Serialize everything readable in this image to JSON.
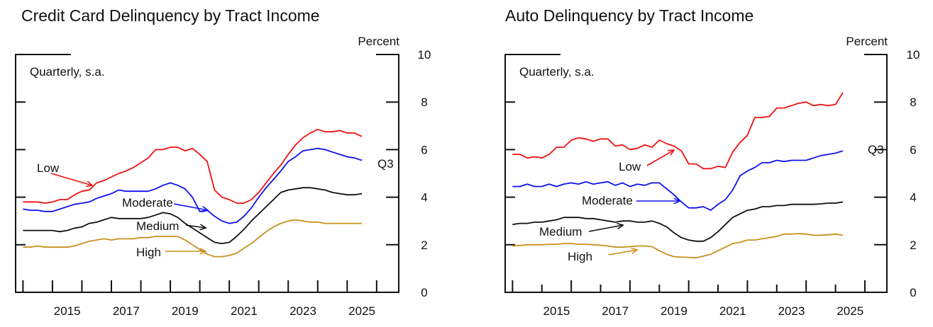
{
  "chart_data": [
    {
      "type": "line",
      "title": "Credit Card Delinquency by Tract Income",
      "ylabel": "Percent",
      "note": "Quarterly, s.a.",
      "end_label": "Q3",
      "ylim": [
        0,
        10
      ],
      "yticks": [
        0,
        2,
        4,
        6,
        8,
        10
      ],
      "xticks": [
        "2015",
        "2017",
        "2019",
        "2021",
        "2023",
        "2025"
      ],
      "xlim": [
        2013.75,
        2026.75
      ],
      "x_start": 2014.0,
      "x_step": 0.25,
      "series": [
        {
          "name": "Low",
          "color": "#ee1111",
          "values": [
            3.8,
            3.8,
            3.8,
            3.75,
            3.8,
            3.9,
            3.9,
            4.1,
            4.25,
            4.3,
            4.6,
            4.7,
            4.85,
            5.0,
            5.1,
            5.25,
            5.45,
            5.65,
            6.0,
            6.0,
            6.1,
            6.1,
            5.95,
            6.05,
            5.8,
            5.5,
            4.3,
            4.0,
            3.9,
            3.75,
            3.75,
            3.9,
            4.2,
            4.6,
            5.0,
            5.35,
            5.8,
            6.2,
            6.5,
            6.7,
            6.85,
            6.75,
            6.75,
            6.8,
            6.7,
            6.7,
            6.55
          ]
        },
        {
          "name": "Moderate",
          "color": "#1111ee",
          "values": [
            3.5,
            3.45,
            3.45,
            3.4,
            3.4,
            3.5,
            3.6,
            3.7,
            3.75,
            3.8,
            3.95,
            4.05,
            4.15,
            4.3,
            4.25,
            4.25,
            4.25,
            4.25,
            4.35,
            4.5,
            4.6,
            4.5,
            4.35,
            4.0,
            3.4,
            3.45,
            3.2,
            3.0,
            2.9,
            2.95,
            3.2,
            3.55,
            4.0,
            4.4,
            4.75,
            5.1,
            5.5,
            5.7,
            5.95,
            6.0,
            6.05,
            6.0,
            5.9,
            5.8,
            5.7,
            5.65,
            5.55
          ]
        },
        {
          "name": "Medium",
          "color": "#111111",
          "values": [
            2.6,
            2.6,
            2.6,
            2.6,
            2.6,
            2.55,
            2.6,
            2.7,
            2.75,
            2.9,
            2.95,
            3.05,
            3.15,
            3.1,
            3.1,
            3.1,
            3.1,
            3.15,
            3.25,
            3.35,
            3.3,
            3.15,
            2.9,
            2.7,
            2.5,
            2.3,
            2.1,
            2.05,
            2.1,
            2.35,
            2.65,
            3.0,
            3.3,
            3.6,
            3.9,
            4.2,
            4.3,
            4.35,
            4.4,
            4.4,
            4.35,
            4.3,
            4.2,
            4.15,
            4.1,
            4.1,
            4.15
          ]
        },
        {
          "name": "High",
          "color": "#c8901e",
          "values": [
            1.9,
            1.9,
            1.95,
            1.9,
            1.9,
            1.9,
            1.9,
            1.95,
            2.05,
            2.15,
            2.2,
            2.25,
            2.2,
            2.25,
            2.25,
            2.25,
            2.3,
            2.3,
            2.35,
            2.35,
            2.35,
            2.35,
            2.2,
            2.0,
            1.8,
            1.6,
            1.5,
            1.5,
            1.55,
            1.65,
            1.85,
            2.05,
            2.3,
            2.55,
            2.75,
            2.9,
            3.0,
            3.05,
            3.0,
            2.95,
            2.95,
            2.9,
            2.9,
            2.9,
            2.9,
            2.9,
            2.9
          ]
        }
      ],
      "annotations": [
        "Low",
        "Moderate",
        "Medium",
        "High"
      ]
    },
    {
      "type": "line",
      "title": "Auto Delinquency by Tract Income",
      "ylabel": "Percent",
      "note": "Quarterly, s.a.",
      "end_label": "Q3",
      "ylim": [
        0,
        10
      ],
      "yticks": [
        0,
        2,
        4,
        6,
        8,
        10
      ],
      "xticks": [
        "2015",
        "2017",
        "2019",
        "2021",
        "2023",
        "2025"
      ],
      "xlim": [
        2013.75,
        2026.75
      ],
      "x_start": 2014.0,
      "x_step": 0.25,
      "series": [
        {
          "name": "Low",
          "color": "#ee1111",
          "values": [
            5.8,
            5.8,
            5.65,
            5.7,
            5.65,
            5.8,
            6.1,
            6.1,
            6.4,
            6.5,
            6.45,
            6.35,
            6.45,
            6.45,
            6.15,
            6.2,
            6.0,
            6.05,
            6.2,
            6.1,
            6.4,
            6.25,
            6.15,
            5.95,
            5.4,
            5.4,
            5.2,
            5.2,
            5.3,
            5.25,
            5.9,
            6.3,
            6.6,
            7.35,
            7.35,
            7.4,
            7.75,
            7.75,
            7.85,
            7.95,
            8.0,
            7.85,
            7.9,
            7.85,
            7.9,
            8.4
          ]
        },
        {
          "name": "Moderate",
          "color": "#1111ee",
          "values": [
            4.45,
            4.45,
            4.55,
            4.45,
            4.45,
            4.55,
            4.45,
            4.55,
            4.6,
            4.55,
            4.65,
            4.55,
            4.6,
            4.65,
            4.5,
            4.6,
            4.45,
            4.55,
            4.5,
            4.6,
            4.6,
            4.35,
            4.1,
            3.8,
            3.55,
            3.55,
            3.6,
            3.45,
            3.7,
            3.9,
            4.3,
            4.9,
            5.1,
            5.25,
            5.45,
            5.45,
            5.55,
            5.5,
            5.55,
            5.55,
            5.55,
            5.65,
            5.75,
            5.8,
            5.85,
            5.95
          ]
        },
        {
          "name": "Medium",
          "color": "#111111",
          "values": [
            2.85,
            2.9,
            2.9,
            2.95,
            2.95,
            3.0,
            3.05,
            3.15,
            3.15,
            3.15,
            3.1,
            3.1,
            3.05,
            3.0,
            2.95,
            3.0,
            3.0,
            2.95,
            2.95,
            3.0,
            2.9,
            2.75,
            2.5,
            2.3,
            2.2,
            2.15,
            2.15,
            2.3,
            2.55,
            2.85,
            3.15,
            3.3,
            3.45,
            3.5,
            3.6,
            3.6,
            3.65,
            3.65,
            3.7,
            3.7,
            3.7,
            3.7,
            3.72,
            3.75,
            3.75,
            3.8
          ]
        },
        {
          "name": "High",
          "color": "#c8901e",
          "values": [
            1.95,
            1.97,
            2.0,
            2.0,
            2.0,
            2.02,
            2.02,
            2.05,
            2.05,
            2.02,
            2.02,
            2.0,
            1.98,
            1.95,
            1.9,
            1.9,
            1.92,
            1.95,
            1.95,
            1.92,
            1.75,
            1.6,
            1.5,
            1.48,
            1.47,
            1.45,
            1.52,
            1.6,
            1.75,
            1.9,
            2.05,
            2.1,
            2.2,
            2.2,
            2.25,
            2.3,
            2.35,
            2.45,
            2.45,
            2.47,
            2.45,
            2.4,
            2.4,
            2.42,
            2.45,
            2.4
          ]
        }
      ],
      "annotations": [
        "Low",
        "Moderate",
        "Medium",
        "High"
      ]
    }
  ]
}
